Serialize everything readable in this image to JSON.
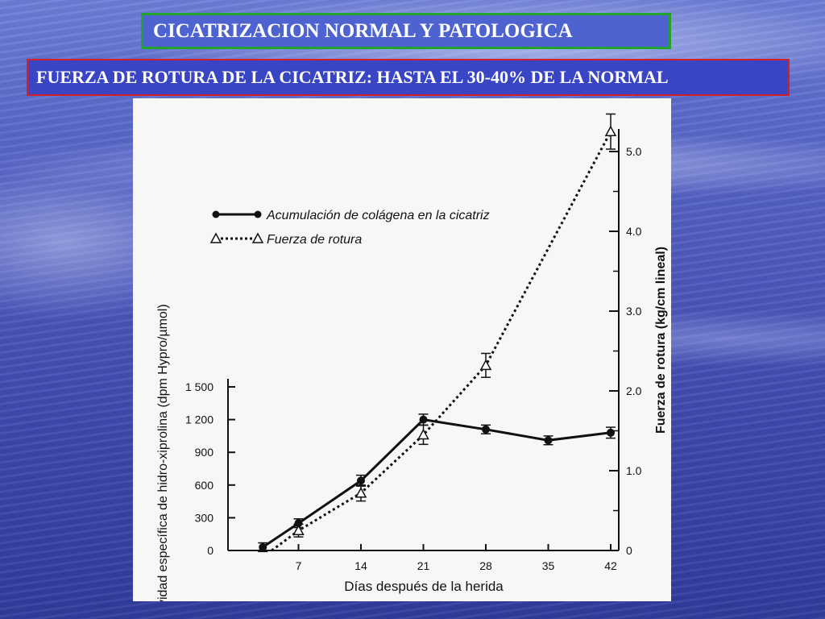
{
  "slide": {
    "title": "CICATRIZACION NORMAL Y PATOLOGICA",
    "subtitle": "FUERZA DE ROTURA DE LA CICATRIZ: HASTA EL 30-40% DE LA NORMAL"
  },
  "colors": {
    "title_border": "#22a32e",
    "subtitle_border": "#d0202a",
    "text": "#ffffff",
    "ink": "#111111"
  },
  "chart_data": {
    "type": "line",
    "xlabel": "Días después de la herida",
    "ylabel": "Actividad específica de hidro-xiprolina (dpm Hypro/µmol)",
    "y2label": "Fuerza de rotura (kg/cm lineal)",
    "x_ticks": [
      7,
      14,
      21,
      28,
      35,
      42
    ],
    "x_tick_labels": [
      "7",
      "14",
      "21",
      "28",
      "35",
      "42"
    ],
    "xlim": [
      0,
      42
    ],
    "y_ticks": [
      0,
      300,
      600,
      900,
      1200,
      1500
    ],
    "y_tick_labels": [
      "0",
      "300",
      "600",
      "900",
      "1 200",
      "1 500"
    ],
    "ylim": [
      0,
      1500
    ],
    "y2_ticks": [
      0,
      1.0,
      2.0,
      3.0,
      4.0,
      5.0
    ],
    "y2_tick_labels": [
      "0",
      "1.0",
      "2.0",
      "3.0",
      "4.0",
      "5.0"
    ],
    "y2lim": [
      0,
      5.0
    ],
    "legend_position": "upper-left",
    "grid": false,
    "series": [
      {
        "name": "Acumulación de colágena en la cicatriz",
        "axis": "left",
        "marker": "filled-circle",
        "line": "solid",
        "x": [
          3,
          7,
          14,
          21,
          28,
          35,
          42
        ],
        "y": [
          30,
          250,
          640,
          1200,
          1110,
          1010,
          1080
        ],
        "err": [
          40,
          40,
          50,
          50,
          40,
          40,
          50
        ]
      },
      {
        "name": "Fuerza de rotura",
        "axis": "right",
        "marker": "open-triangle",
        "line": "dotted",
        "x": [
          4,
          7,
          14,
          21,
          28,
          42
        ],
        "y": [
          0.0,
          0.25,
          0.72,
          1.45,
          2.32,
          5.25
        ],
        "err": [
          0.0,
          0.08,
          0.1,
          0.12,
          0.15,
          0.22
        ]
      }
    ]
  }
}
